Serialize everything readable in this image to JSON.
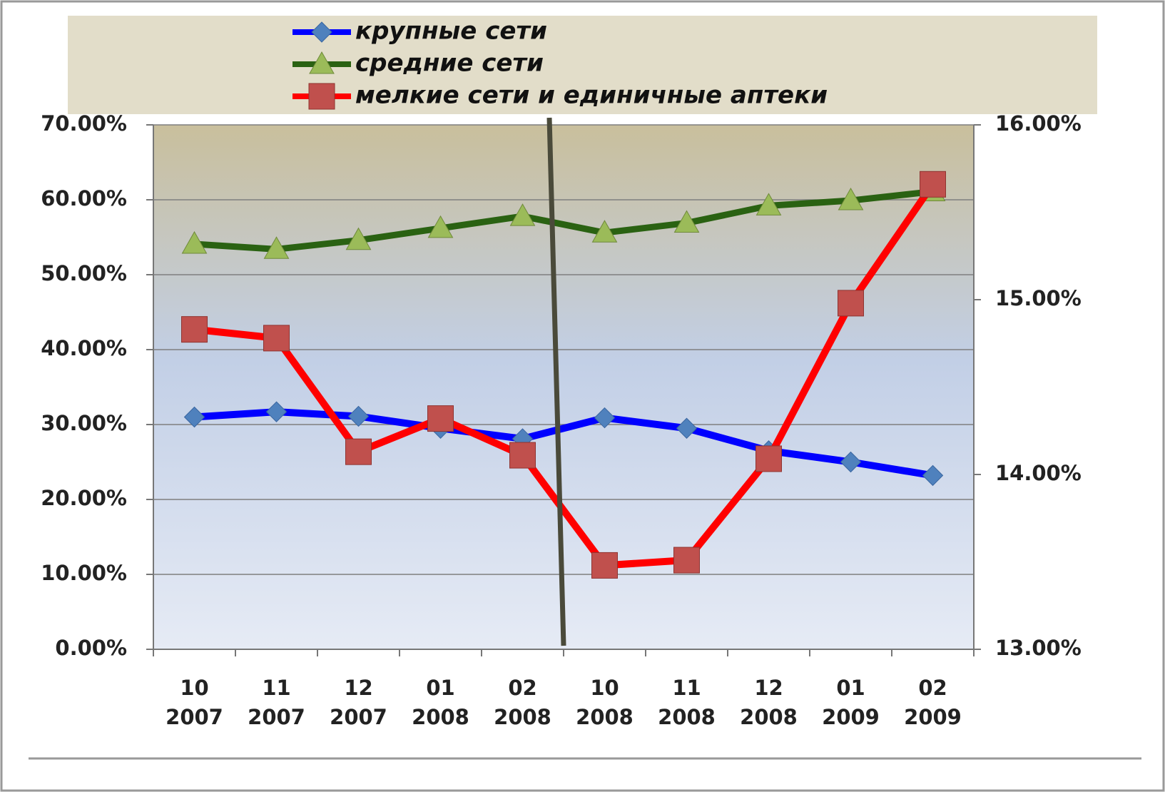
{
  "chart_data": {
    "type": "line",
    "categories": [
      [
        "10",
        "2007"
      ],
      [
        "11",
        "2007"
      ],
      [
        "12",
        "2007"
      ],
      [
        "01",
        "2008"
      ],
      [
        "02",
        "2008"
      ],
      [
        "10",
        "2008"
      ],
      [
        "11",
        "2008"
      ],
      [
        "12",
        "2008"
      ],
      [
        "01",
        "2009"
      ],
      [
        "02",
        "2009"
      ]
    ],
    "series": [
      {
        "name": "крупные сети",
        "color": "#0000ff",
        "marker": "diamond",
        "marker_color": "#4f81bd",
        "axis": "y",
        "values": [
          31.0,
          31.7,
          31.1,
          29.5,
          28.1,
          30.9,
          29.5,
          26.5,
          25.0,
          23.2
        ]
      },
      {
        "name": "средние сети",
        "color": "#2a6212",
        "marker": "triangle",
        "marker_color": "#9bbb59",
        "axis": "y",
        "values": [
          54.1,
          53.4,
          54.6,
          56.2,
          57.8,
          55.6,
          56.9,
          59.2,
          59.9,
          61.1
        ]
      },
      {
        "name": "мелкие сети и единичные аптеки",
        "color": "#ff0000",
        "marker": "square",
        "marker_color": "#c0504d",
        "axis": "y2",
        "values": [
          14.83,
          14.78,
          14.13,
          14.32,
          14.11,
          13.48,
          13.51,
          14.09,
          14.98,
          15.66
        ]
      }
    ],
    "ylim": [
      0,
      70
    ],
    "yticks": [
      {
        "value": 0,
        "label": "0.00%"
      },
      {
        "value": 10,
        "label": "10.00%"
      },
      {
        "value": 20,
        "label": "20.00%"
      },
      {
        "value": 30,
        "label": "30.00%"
      },
      {
        "value": 40,
        "label": "40.00%"
      },
      {
        "value": 50,
        "label": "50.00%"
      },
      {
        "value": 60,
        "label": "60.00%"
      },
      {
        "value": 70,
        "label": "70.00%"
      }
    ],
    "y2lim": [
      13,
      16
    ],
    "y2ticks": [
      {
        "value": 13,
        "label": "13.00%"
      },
      {
        "value": 14,
        "label": "14.00%"
      },
      {
        "value": 15,
        "label": "15.00%"
      },
      {
        "value": 16,
        "label": "16.00%"
      }
    ],
    "grid": true,
    "legend": "top"
  }
}
